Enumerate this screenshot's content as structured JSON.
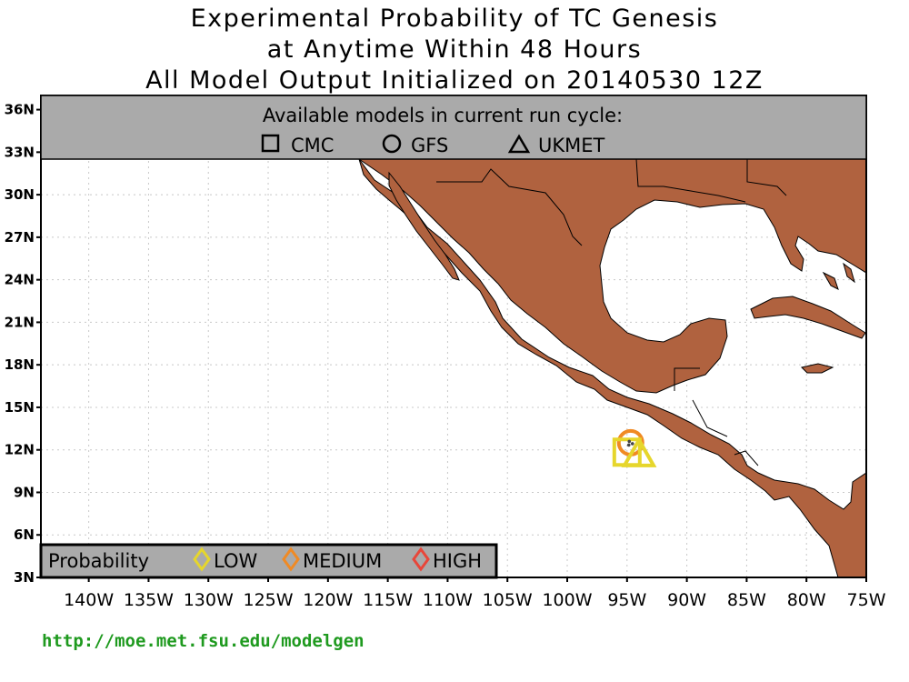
{
  "title": {
    "line1": "Experimental Probability of TC Genesis",
    "line2": "at Anytime Within 48 Hours",
    "line3": "All Model Output Initialized on 20140530 12Z"
  },
  "models_panel": {
    "heading": "Available models in current run cycle:",
    "models": [
      {
        "name": "CMC",
        "symbol": "square"
      },
      {
        "name": "GFS",
        "symbol": "circle"
      },
      {
        "name": "UKMET",
        "symbol": "triangle"
      }
    ]
  },
  "legend": {
    "label": "Probability",
    "items": [
      {
        "name": "LOW",
        "color": "#e6d62c"
      },
      {
        "name": "MEDIUM",
        "color": "#f08a24"
      },
      {
        "name": "HIGH",
        "color": "#e8463a"
      }
    ]
  },
  "axes": {
    "lon_ticks": [
      "140W",
      "135W",
      "130W",
      "125W",
      "120W",
      "115W",
      "110W",
      "105W",
      "100W",
      "95W",
      "90W",
      "85W",
      "80W",
      "75W"
    ],
    "lat_ticks": [
      "3N",
      "6N",
      "9N",
      "12N",
      "15N",
      "18N",
      "21N",
      "24N",
      "27N",
      "30N",
      "33N",
      "36N"
    ],
    "lon_range": [
      -144,
      -75
    ],
    "lat_range": [
      3,
      37
    ]
  },
  "markers": [
    {
      "model": "GFS",
      "symbol": "circle",
      "probability": "MEDIUM",
      "lon": -94.7,
      "lat": 12.5
    },
    {
      "model": "CMC",
      "symbol": "square",
      "probability": "LOW",
      "lon": -95.0,
      "lat": 11.9
    },
    {
      "model": "UKMET",
      "symbol": "triangle",
      "probability": "LOW",
      "lon": -94.0,
      "lat": 11.8
    }
  ],
  "colors": {
    "land": "#b0623f",
    "panel": "#aaaaaa",
    "url": "#1f9a1f"
  },
  "footer": {
    "url": "http://moe.met.fsu.edu/modelgen"
  }
}
